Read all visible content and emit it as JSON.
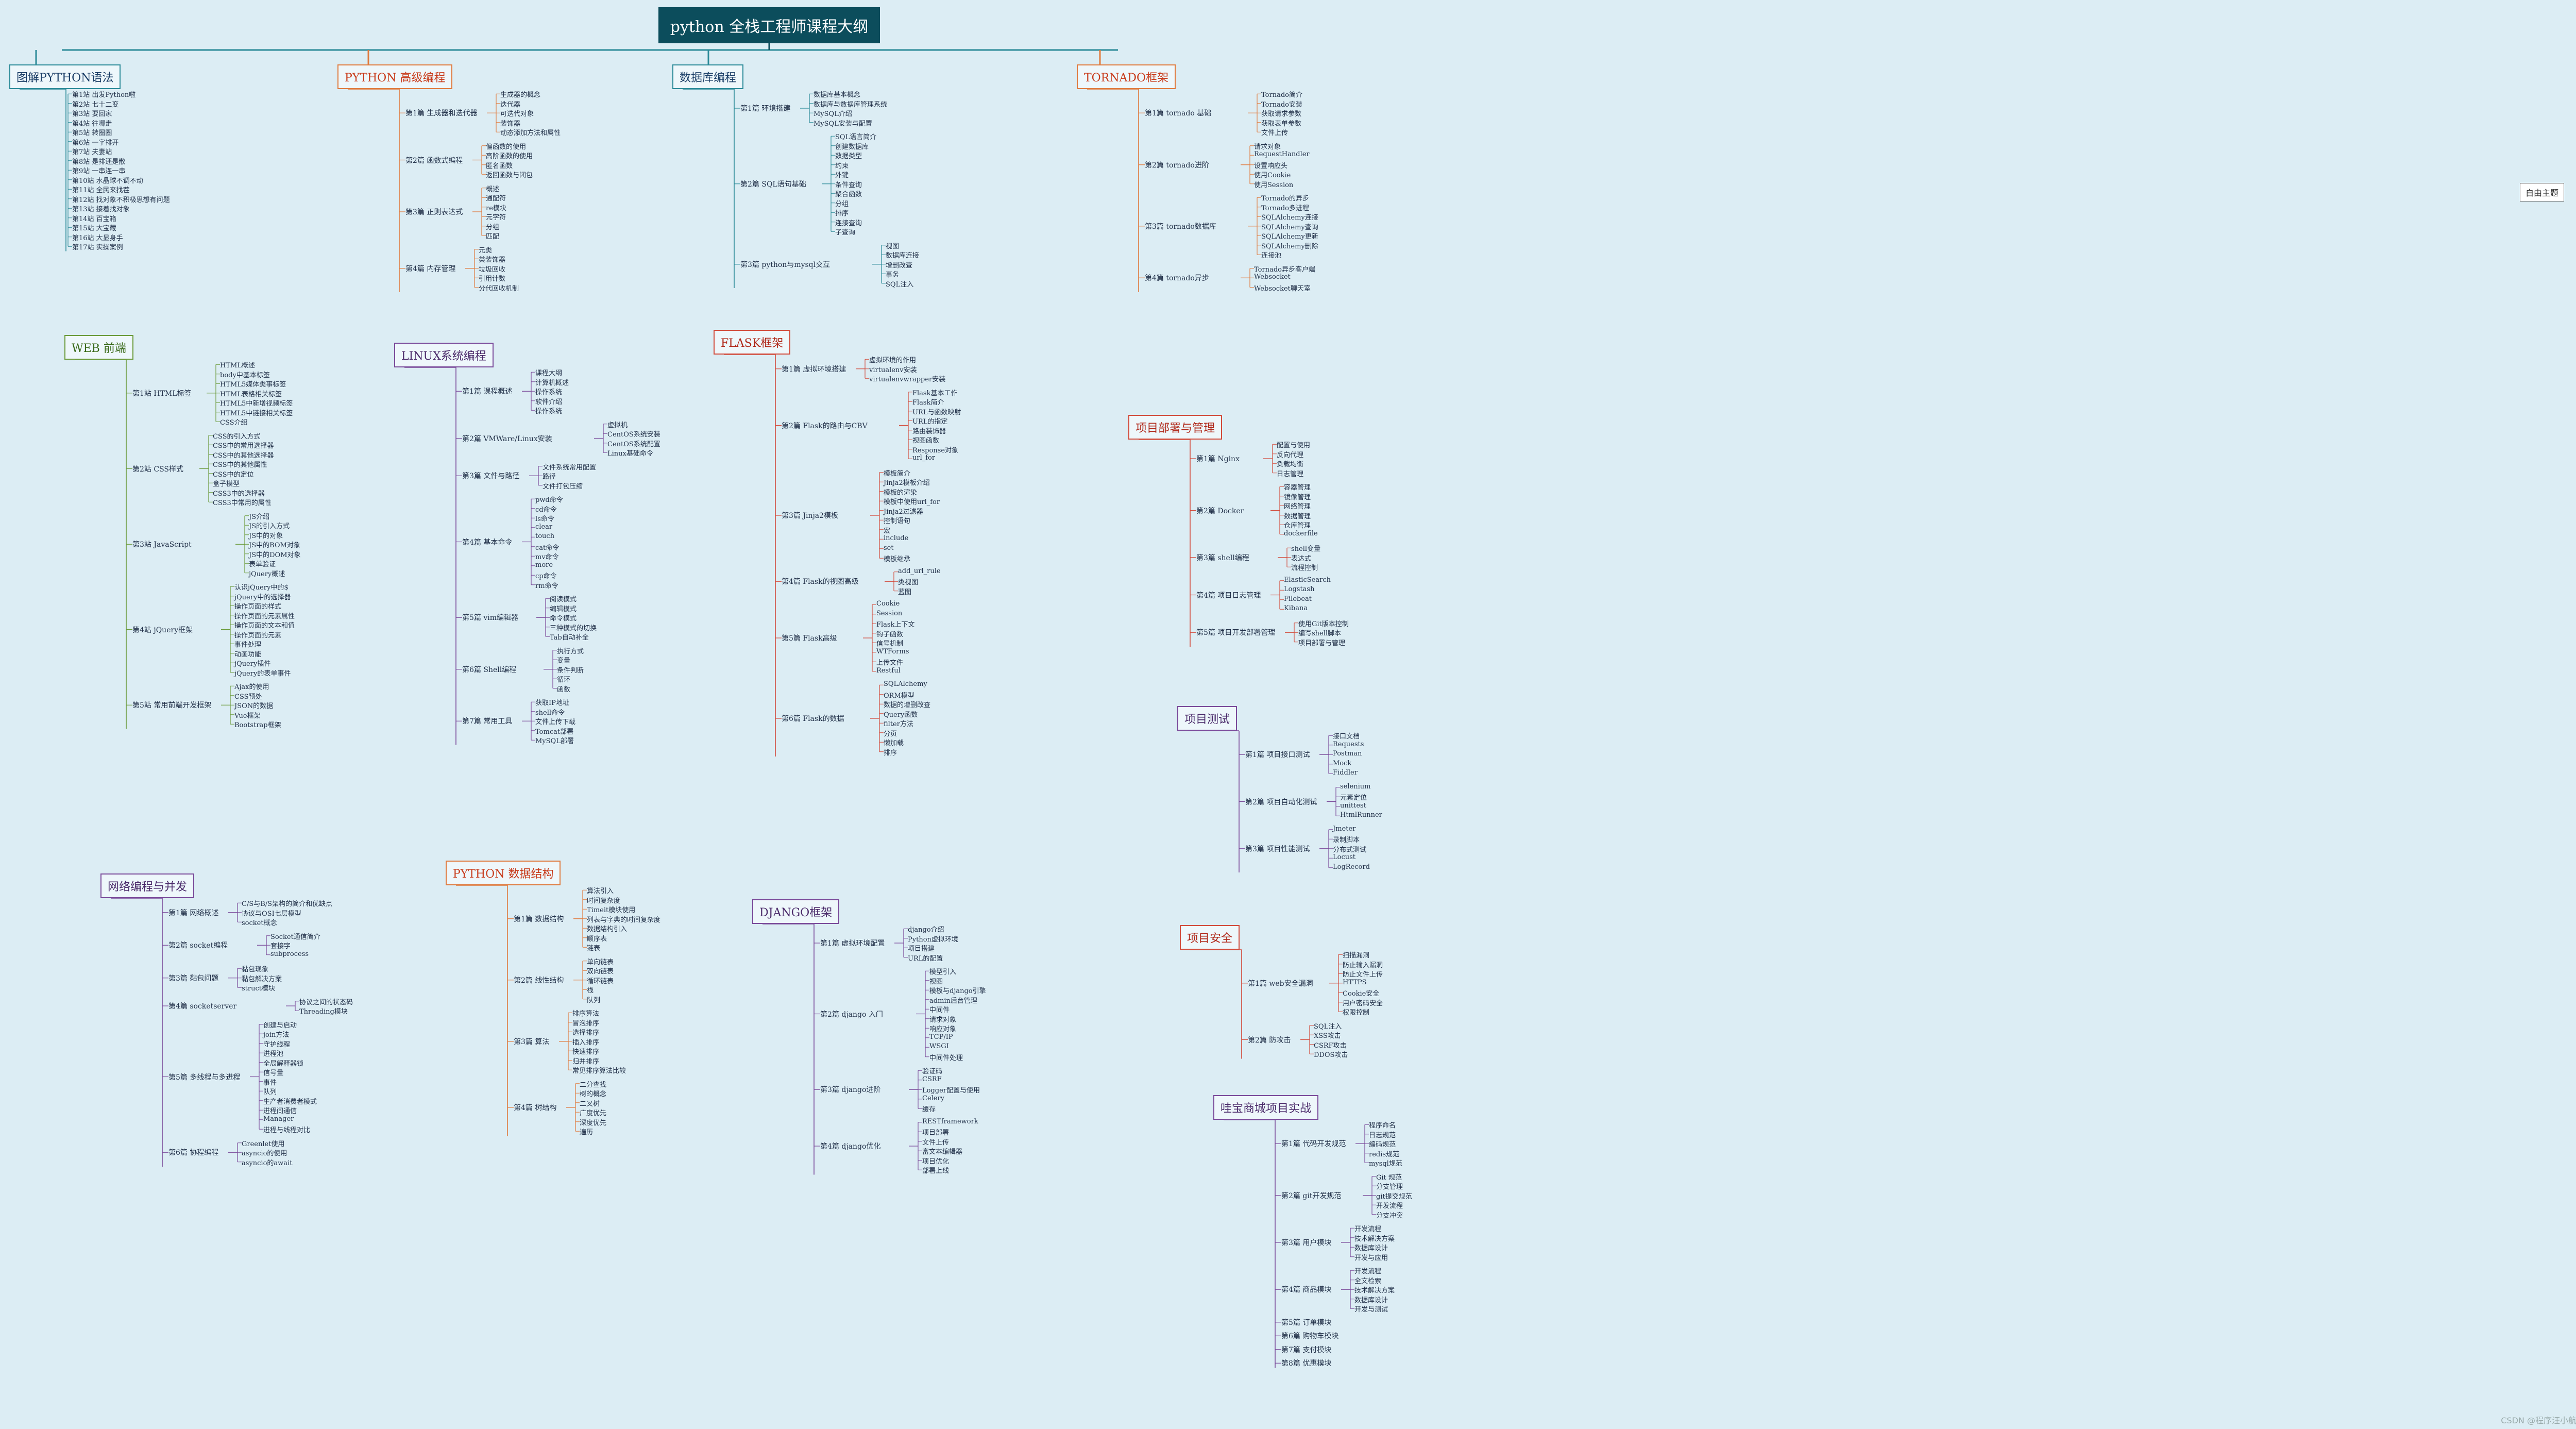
{
  "title": "python 全栈工程师课程大纲",
  "free_topic": "自由主题",
  "watermark": "CSDN @程序汪小航",
  "branches": [
    {
      "label": "图解PYTHON语法",
      "style": "teal",
      "groups": [
        {
          "label": "",
          "items": [
            "第1站 出发Python啦",
            "第2站 七十二变",
            "第3站 要回家",
            "第4站 往哪走",
            "第5站 转圈圈",
            "第6站 一字排开",
            "第7站 夫妻站",
            "第8站 是排还是散",
            "第9站 一串连一串",
            "第10站 水晶球不调不动",
            "第11站 全民来找茬",
            "第12站 找对象不积极思想有问题",
            "第13站 接着找对象",
            "第14站 百宝箱",
            "第15站 大宝藏",
            "第16站 大显身手",
            "第17站 实操案例"
          ]
        }
      ]
    },
    {
      "label": "WEB 前端",
      "style": "green",
      "groups": [
        {
          "label": "第1站 HTML标签",
          "items": [
            "HTML概述",
            "body中基本标签",
            "HTML5媒体类事标签",
            "HTML表格相关标签",
            "HTML5中新增视频标签",
            "HTML5中链接相关标签",
            "CSS介绍"
          ]
        },
        {
          "label": "第2站 CSS样式",
          "items": [
            "CSS的引入方式",
            "CSS中的常用选择器",
            "CSS中的其他选择器",
            "CSS中的其他属性",
            "CSS中的定位",
            "盒子模型",
            "CSS3中的选择器",
            "CSS3中常用的属性"
          ]
        },
        {
          "label": "第3站 JavaScript",
          "items": [
            "JS介绍",
            "JS的引入方式",
            "JS中的对象",
            "JS中的BOM对象",
            "JS中的DOM对象",
            "表单验证",
            "jQuery概述"
          ]
        },
        {
          "label": "第4站 jQuery框架",
          "items": [
            "认识jQuery中的$",
            "jQuery中的选择器",
            "操作页面的样式",
            "操作页面的元素属性",
            "操作页面的文本和值",
            "操作页面的元素",
            "事件处理",
            "动画功能",
            "jQuery插件",
            "jQuery的表单事件"
          ]
        },
        {
          "label": "第5站 常用前端开发框架",
          "items": [
            "Ajax的使用",
            "CSS预处",
            "JSON的数据",
            "Vue框架",
            "Bootstrap框架"
          ]
        }
      ]
    },
    {
      "label": "网络编程与并发",
      "style": "purple",
      "groups": [
        {
          "label": "第1篇 网络概述",
          "items": [
            "C/S与B/S架构的简介和优缺点",
            "协议与OSI七层模型",
            "socket概念"
          ]
        },
        {
          "label": "第2篇 socket编程",
          "items": [
            "Socket通信简介",
            "套接字",
            "subprocess"
          ]
        },
        {
          "label": "第3篇 黏包问题",
          "items": [
            "黏包现象",
            "黏包解决方案",
            "struct模块"
          ]
        },
        {
          "label": "第4篇 socketserver",
          "items": [
            "协议之间的状态码",
            "Threading模块"
          ]
        },
        {
          "label": "第5篇 多线程与多进程",
          "items": [
            "创建与启动",
            "join方法",
            "守护线程",
            "进程池",
            "全局解释器锁",
            "信号量",
            "事件",
            "队列",
            "生产者消费者模式",
            "进程间通信",
            "Manager",
            "进程与线程对比"
          ]
        },
        {
          "label": "第6篇 协程编程",
          "items": [
            "Greenlet使用",
            "asyncio的使用",
            "asyncio的await"
          ]
        }
      ]
    },
    {
      "label": "PYTHON 高级编程",
      "style": "orange",
      "groups": [
        {
          "label": "第1篇 生成器和迭代器",
          "items": [
            "生成器的概念",
            "迭代器",
            "可迭代对象",
            "装饰器",
            "动态添加方法和属性"
          ]
        },
        {
          "label": "第2篇 函数式编程",
          "items": [
            "偏函数的使用",
            "高阶函数的使用",
            "匿名函数",
            "返回函数与闭包"
          ]
        },
        {
          "label": "第3篇 正则表达式",
          "items": [
            "概述",
            "通配符",
            "re模块",
            "元字符",
            "分组",
            "匹配"
          ]
        },
        {
          "label": "第4篇 内存管理",
          "items": [
            "元类",
            "类装饰器",
            "垃圾回收",
            "引用计数",
            "分代回收机制"
          ]
        }
      ]
    },
    {
      "label": "LINUX系统编程",
      "style": "purple",
      "groups": [
        {
          "label": "第1篇 课程概述",
          "items": [
            "课程大纲",
            "计算机概述",
            "操作系统",
            "软件介绍",
            "操作系统"
          ]
        },
        {
          "label": "第2篇 VMWare/Linux安装",
          "items": [
            "虚拟机",
            "CentOS系统安装",
            "CentOS系统配置",
            "Linux基础命令"
          ]
        },
        {
          "label": "第3篇 文件与路径",
          "items": [
            "文件系统常用配置",
            "路径",
            "文件打包压缩"
          ]
        },
        {
          "label": "第4篇 基本命令",
          "items": [
            "pwd命令",
            "cd命令",
            "ls命令",
            "clear",
            "touch",
            "cat命令",
            "mv命令",
            "more",
            "cp命令",
            "rm命令"
          ]
        },
        {
          "label": "第5篇 vim编辑器",
          "items": [
            "阅读模式",
            "编辑模式",
            "命令模式",
            "三种模式的切换",
            "Tab自动补全"
          ]
        },
        {
          "label": "第6篇 Shell编程",
          "items": [
            "执行方式",
            "变量",
            "条件判断",
            "循环",
            "函数"
          ]
        },
        {
          "label": "第7篇 常用工具",
          "items": [
            "获取IP地址",
            "shell命令",
            "文件上传下载",
            "Tomcat部署",
            "MySQL部署"
          ]
        }
      ]
    },
    {
      "label": "PYTHON 数据结构",
      "style": "orange",
      "groups": [
        {
          "label": "第1篇 数据结构",
          "items": [
            "算法引入",
            "时间复杂度",
            "Timeit模块使用",
            "列表与字典的时间复杂度",
            "数据结构引入",
            "顺序表",
            "链表"
          ]
        },
        {
          "label": "第2篇 线性结构",
          "items": [
            "单向链表",
            "双向链表",
            "循环链表",
            "栈",
            "队列"
          ]
        },
        {
          "label": "第3篇 算法",
          "items": [
            "排序算法",
            "冒泡排序",
            "选择排序",
            "插入排序",
            "快速排序",
            "归并排序",
            "常见排序算法比较"
          ]
        },
        {
          "label": "第4篇 树结构",
          "items": [
            "二分查找",
            "树的概念",
            "二叉树",
            "广度优先",
            "深度优先",
            "遍历"
          ]
        }
      ]
    },
    {
      "label": "数据库编程",
      "style": "teal",
      "groups": [
        {
          "label": "第1篇 环境搭建",
          "items": [
            "数据库基本概念",
            "数据库与数据库管理系统",
            "MySQL介绍",
            "MySQL安装与配置"
          ]
        },
        {
          "label": "第2篇 SQL语句基础",
          "items": [
            "SQL语言简介",
            "创建数据库",
            "数据类型",
            "约束",
            "外键",
            "条件查询",
            "聚合函数",
            "分组",
            "排序",
            "连接查询",
            "子查询"
          ]
        },
        {
          "label": "第3篇 python与mysql交互",
          "items": [
            "视图",
            "数据库连接",
            "增删改查",
            "事务",
            "SQL注入"
          ]
        }
      ]
    },
    {
      "label": "FLASK框架",
      "style": "red",
      "groups": [
        {
          "label": "第1篇 虚拟环境搭建",
          "items": [
            "虚拟环境的作用",
            "virtualenv安装",
            "virtualenvwrapper安装"
          ]
        },
        {
          "label": "第2篇 Flask的路由与CBV",
          "items": [
            "Flask基本工作",
            "Flask简介",
            "URL与函数映射",
            "URL的指定",
            "路由装饰器",
            "视图函数",
            "Response对象",
            "url_for"
          ]
        },
        {
          "label": "第3篇 Jinja2模板",
          "items": [
            "模板简介",
            "Jinja2模板介绍",
            "模板的渲染",
            "模板中使用url_for",
            "Jinja2过滤器",
            "控制语句",
            "宏",
            "include",
            "set",
            "模板继承"
          ]
        },
        {
          "label": "第4篇 Flask的视图高级",
          "items": [
            "add_url_rule",
            "类视图",
            "蓝图"
          ]
        },
        {
          "label": "第5篇 Flask高级",
          "items": [
            "Cookie",
            "Session",
            "Flask上下文",
            "钩子函数",
            "信号机制",
            "WTForms",
            "上传文件",
            "Restful"
          ]
        },
        {
          "label": "第6篇 Flask的数据",
          "items": [
            "SQLAlchemy",
            "ORM模型",
            "数据的增删改查",
            "Query函数",
            "filter方法",
            "分页",
            "懒加载",
            "排序"
          ]
        }
      ]
    },
    {
      "label": "DJANGO框架",
      "style": "purple",
      "groups": [
        {
          "label": "第1篇 虚拟环境配置",
          "items": [
            "django介绍",
            "Python虚拟环境",
            "项目搭建",
            "URL的配置"
          ]
        },
        {
          "label": "第2篇 django 入门",
          "items": [
            "模型引入",
            "视图",
            "模板与django引擎",
            "admin后台管理",
            "中间件",
            "请求对象",
            "响应对象",
            "TCP/IP",
            "WSGI",
            "中间件处理"
          ]
        },
        {
          "label": "第3篇 django进阶",
          "items": [
            "验证码",
            "CSRF",
            "Logger配置与使用",
            "Celery",
            "缓存"
          ]
        },
        {
          "label": "第4篇 django优化",
          "items": [
            "RESTframework",
            "项目部署",
            "文件上传",
            "富文本编辑器",
            "项目优化",
            "部署上线"
          ]
        }
      ]
    },
    {
      "label": "TORNADO框架",
      "style": "orange",
      "groups": [
        {
          "label": "第1篇 tornado 基础",
          "items": [
            "Tornado简介",
            "Tornado安装",
            "获取请求参数",
            "获取表单参数",
            "文件上传"
          ]
        },
        {
          "label": "第2篇 tornado进阶",
          "items": [
            "请求对象",
            "RequestHandler",
            "设置响应头",
            "使用Cookie",
            "使用Session"
          ]
        },
        {
          "label": "第3篇 tornado数据库",
          "items": [
            "Tornado的异步",
            "Tornado多进程",
            "SQLAlchemy连接",
            "SQLAlchemy查询",
            "SQLAlchemy更新",
            "SQLAlchemy删除",
            "连接池"
          ]
        },
        {
          "label": "第4篇 tornado异步",
          "items": [
            "Tornado异步客户端",
            "Websocket",
            "Websocket聊天室"
          ]
        }
      ]
    },
    {
      "label": "项目部署与管理",
      "style": "red",
      "groups": [
        {
          "label": "第1篇 Nginx",
          "items": [
            "配置与使用",
            "反向代理",
            "负载均衡",
            "日志管理"
          ]
        },
        {
          "label": "第2篇 Docker",
          "items": [
            "容器管理",
            "镜像管理",
            "网络管理",
            "数据管理",
            "仓库管理",
            "dockerfile"
          ]
        },
        {
          "label": "第3篇 shell编程",
          "items": [
            "shell变量",
            "表达式",
            "流程控制"
          ]
        },
        {
          "label": "第4篇 项目日志管理",
          "items": [
            "ElasticSearch",
            "Logstash",
            "Filebeat",
            "Kibana"
          ]
        },
        {
          "label": "第5篇 项目开发部署管理",
          "items": [
            "使用Git版本控制",
            "编写shell脚本",
            "项目部署与管理"
          ]
        }
      ]
    },
    {
      "label": "项目测试",
      "style": "purple",
      "groups": [
        {
          "label": "第1篇 项目接口测试",
          "items": [
            "接口文档",
            "Requests",
            "Postman",
            "Mock",
            "Fiddler"
          ]
        },
        {
          "label": "第2篇 项目自动化测试",
          "items": [
            "selenium",
            "元素定位",
            "unittest",
            "HtmlRunner"
          ]
        },
        {
          "label": "第3篇 项目性能测试",
          "items": [
            "Jmeter",
            "录制脚本",
            "分布式测试",
            "Locust",
            "LogRecord"
          ]
        }
      ]
    },
    {
      "label": "项目安全",
      "style": "red",
      "groups": [
        {
          "label": "第1篇 web安全漏洞",
          "items": [
            "扫描漏洞",
            "防止输入漏洞",
            "防止文件上传",
            "HTTPS",
            "Cookie安全",
            "用户密码安全",
            "权限控制"
          ]
        },
        {
          "label": "第2篇 防攻击",
          "items": [
            "SQL注入",
            "XSS攻击",
            "CSRF攻击",
            "DDOS攻击"
          ]
        }
      ]
    },
    {
      "label": "哇宝商城项目实战",
      "style": "purple",
      "groups": [
        {
          "label": "第1篇 代码开发规范",
          "items": [
            "程序命名",
            "日志规范",
            "编码规范",
            "redis规范",
            "mysql规范"
          ]
        },
        {
          "label": "第2篇 git开发规范",
          "items": [
            "Git 规范",
            "分支管理",
            "git提交规范",
            "开发流程",
            "分支冲突"
          ]
        },
        {
          "label": "第3篇 用户模块",
          "items": [
            "开发流程",
            "技术解决方案",
            "数据库设计",
            "开发与应用"
          ]
        },
        {
          "label": "第4篇 商品模块",
          "items": [
            "开发流程",
            "全文检索",
            "技术解决方案",
            "数据库设计",
            "开发与测试"
          ]
        },
        {
          "label": "第5篇 订单模块",
          "items": []
        },
        {
          "label": "第6篇 购物车模块",
          "items": []
        },
        {
          "label": "第7篇 支付模块",
          "items": []
        },
        {
          "label": "第8篇 优惠模块",
          "items": []
        }
      ]
    }
  ]
}
